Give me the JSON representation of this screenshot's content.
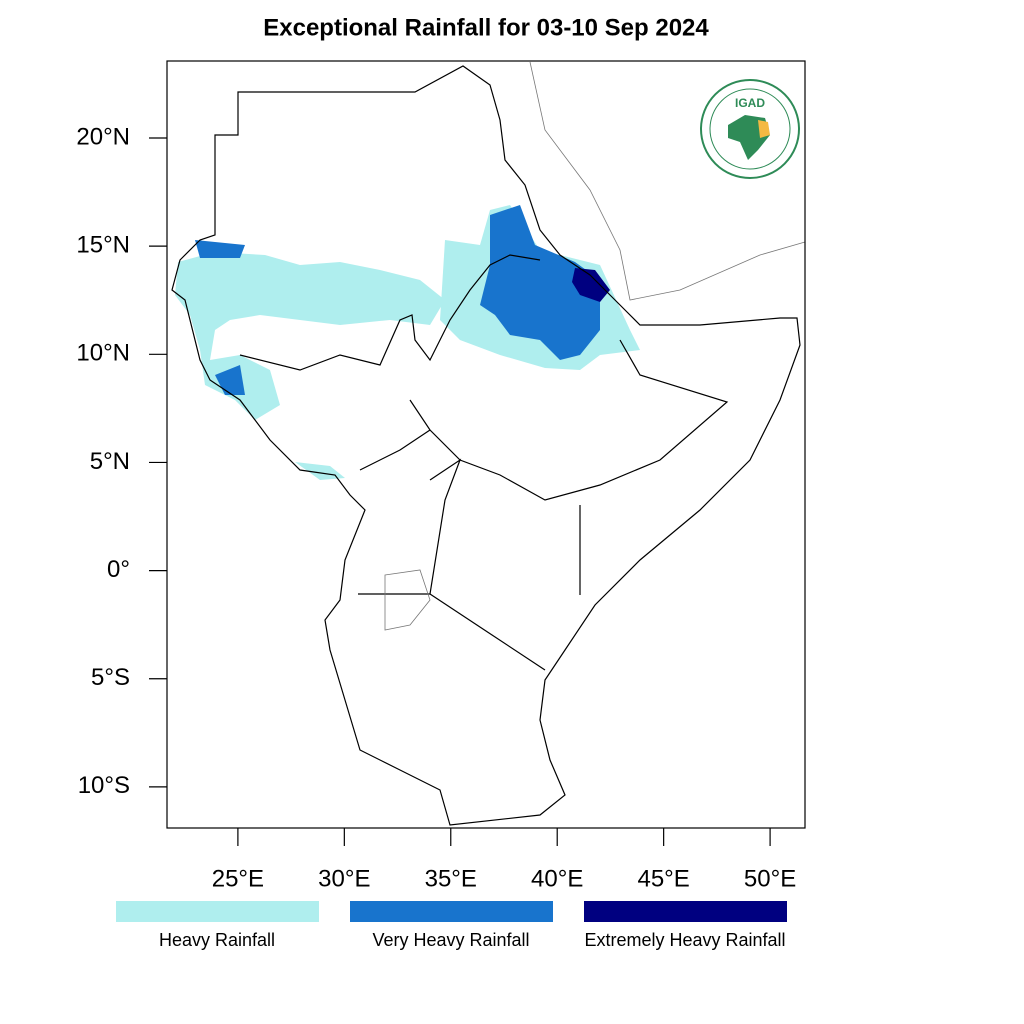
{
  "title": "Exceptional Rainfall for 03-10 Sep 2024",
  "logo": "IGAD",
  "map": {
    "xlim": [
      21.67,
      51.64
    ],
    "ylim": [
      -11.9,
      23.56
    ],
    "xticks": [
      {
        "value": 25,
        "label": "25°E"
      },
      {
        "value": 30,
        "label": "30°E"
      },
      {
        "value": 35,
        "label": "35°E"
      },
      {
        "value": 40,
        "label": "40°E"
      },
      {
        "value": 45,
        "label": "45°E"
      },
      {
        "value": 50,
        "label": "50°E"
      }
    ],
    "yticks": [
      {
        "value": 20,
        "label": "20°N"
      },
      {
        "value": 15,
        "label": "15°N"
      },
      {
        "value": 10,
        "label": "10°N"
      },
      {
        "value": 5,
        "label": "5°N"
      },
      {
        "value": 0,
        "label": "0°"
      },
      {
        "value": -5,
        "label": "5°S"
      },
      {
        "value": -10,
        "label": "10°S"
      }
    ]
  },
  "legend": [
    {
      "label": "Heavy Rainfall",
      "color": "#afeeee"
    },
    {
      "label": "Very Heavy Rainfall",
      "color": "#1874cd"
    },
    {
      "label": "Extremely Heavy Rainfall",
      "color": "#000080"
    }
  ]
}
